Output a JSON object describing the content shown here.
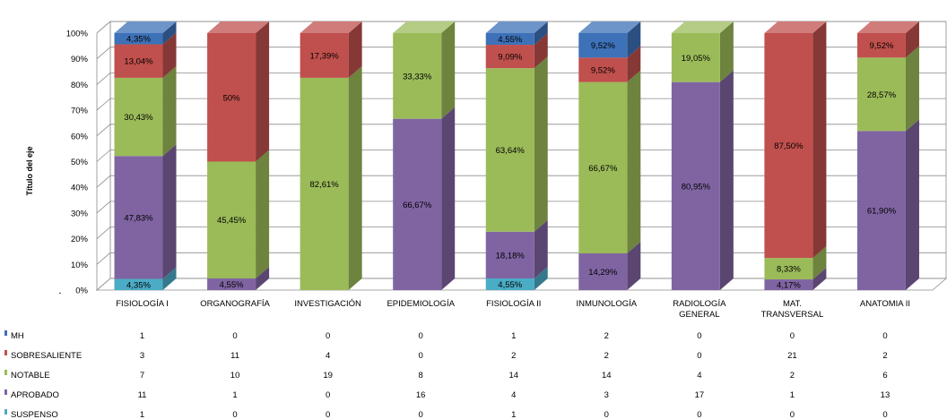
{
  "chart_data": {
    "type": "bar",
    "stacked": "percent",
    "three_d": true,
    "ylabel": "Título del eje",
    "yticks": [
      "0%",
      "10%",
      "20%",
      "30%",
      "40%",
      "50%",
      "60%",
      "70%",
      "80%",
      "90%",
      "100%"
    ],
    "ylim": [
      0,
      100
    ],
    "grid": true,
    "legend": "data table below chart",
    "categories": [
      [
        "FISIOLOGÍA I"
      ],
      [
        "ORGANOGRAFÍA"
      ],
      [
        "INVESTIGACIÓN"
      ],
      [
        "EPIDEMIOLOGÍA"
      ],
      [
        "FISIOLOGÍA II"
      ],
      [
        "INMUNOLOGÍA"
      ],
      [
        "RADIOLOGÍA",
        "GENERAL"
      ],
      [
        "MAT.",
        "TRANSVERSAL"
      ],
      [
        "ANATOMIA II"
      ]
    ],
    "series": [
      {
        "name": "MH",
        "color": "#3d71b8",
        "counts": [
          1,
          0,
          0,
          0,
          1,
          2,
          0,
          0,
          0
        ],
        "percent_labels": [
          "4,35%",
          "",
          "",
          "",
          "4,55%",
          "9,52%",
          "",
          "",
          ""
        ]
      },
      {
        "name": "SOBRESALIENTE",
        "color": "#c0504d",
        "counts": [
          3,
          11,
          4,
          0,
          2,
          2,
          0,
          21,
          2
        ],
        "percent_labels": [
          "13,04%",
          "50%",
          "17,39%",
          "",
          "9,09%",
          "9,52%",
          "",
          "87,50%",
          "9,52%"
        ]
      },
      {
        "name": "NOTABLE",
        "color": "#9bbb59",
        "counts": [
          7,
          10,
          19,
          8,
          14,
          14,
          4,
          2,
          6
        ],
        "percent_labels": [
          "30,43%",
          "45,45%",
          "82,61%",
          "33,33%",
          "63,64%",
          "66,67%",
          "19,05%",
          "8,33%",
          "28,57%"
        ]
      },
      {
        "name": "APROBADO",
        "color": "#8064a2",
        "counts": [
          11,
          1,
          0,
          16,
          4,
          3,
          17,
          1,
          13
        ],
        "percent_labels": [
          "47,83%",
          "4,55%",
          "",
          "66,67%",
          "18,18%",
          "14,29%",
          "80,95%",
          "4,17%",
          "61,90%"
        ]
      },
      {
        "name": "SUSPENSO",
        "color": "#4bacc6",
        "counts": [
          1,
          0,
          0,
          0,
          1,
          0,
          0,
          0,
          0
        ],
        "percent_labels": [
          "4,35%",
          "",
          "",
          "",
          "4,55%",
          "",
          "",
          "",
          ""
        ]
      }
    ]
  }
}
